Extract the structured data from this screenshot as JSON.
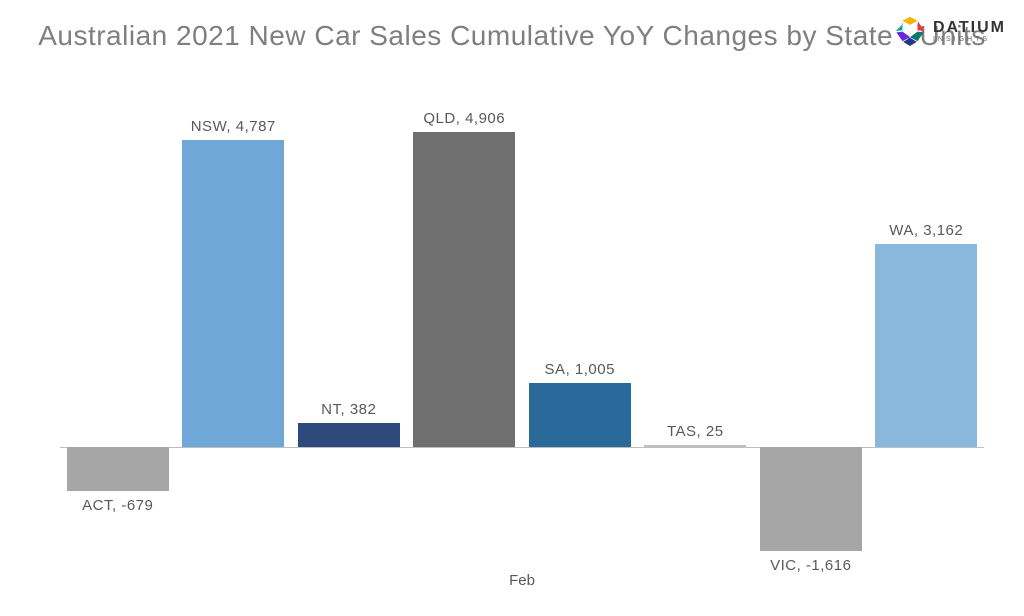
{
  "title": "Australian 2021 New Car Sales Cumulative YoY Changes by State - Units",
  "logo": {
    "main": "DATIUM",
    "sub": "INSIGHTS"
  },
  "chart": {
    "type": "bar",
    "x_axis_label": "Feb",
    "baseline_value": 0,
    "y_min": -1700,
    "y_max": 5100,
    "baseline_color": "#bfbfbf",
    "background_color": "#ffffff",
    "label_color": "#595959",
    "label_fontsize": 15,
    "title_color": "#7f7f7f",
    "title_fontsize": 28,
    "bar_width_ratio": 0.88,
    "categories": [
      {
        "name": "ACT",
        "value": -679,
        "color": "#a6a6a6",
        "label": "ACT, -679"
      },
      {
        "name": "NSW",
        "value": 4787,
        "color": "#6fa8d6",
        "label": "NSW, 4,787"
      },
      {
        "name": "NT",
        "value": 382,
        "color": "#2e4a7d",
        "label": "NT, 382"
      },
      {
        "name": "QLD",
        "value": 4906,
        "color": "#6f6f6f",
        "label": "QLD, 4,906"
      },
      {
        "name": "SA",
        "value": 1005,
        "color": "#2a6a9a",
        "label": "SA, 1,005"
      },
      {
        "name": "TAS",
        "value": 25,
        "color": "#bfbfbf",
        "label": "TAS, 25"
      },
      {
        "name": "VIC",
        "value": -1616,
        "color": "#a6a6a6",
        "label": "VIC, -1,616"
      },
      {
        "name": "WA",
        "value": 3162,
        "color": "#8ab8dd",
        "label": "WA, 3,162"
      }
    ]
  }
}
